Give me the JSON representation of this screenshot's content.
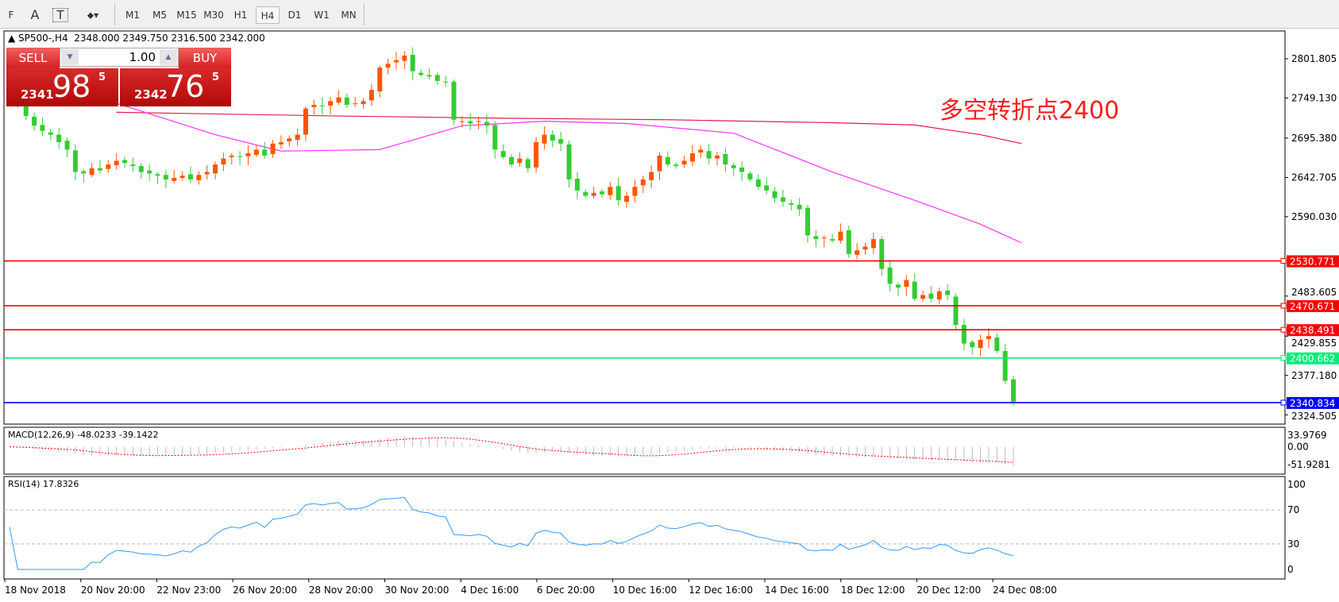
{
  "toolbar": {
    "timeframes": [
      "M1",
      "M5",
      "M15",
      "M30",
      "H1",
      "H4",
      "D1",
      "W1",
      "MN"
    ],
    "active": "H4",
    "tools": [
      "F",
      "A",
      "T"
    ]
  },
  "header": {
    "symbol": "SP500-,H4",
    "ohlc": "2348.000 2349.750 2316.500 2342.000"
  },
  "trade_panel": {
    "sell_label": "SELL",
    "buy_label": "BUY",
    "volume": "1.00",
    "sell_small": "2341",
    "sell_big": "98",
    "sell_sup": "5",
    "buy_small": "2342",
    "buy_big": "76",
    "buy_sup": "5"
  },
  "annotation": "多空转折点2400",
  "colors": {
    "bull": "#ff5500",
    "bear": "#33cc33",
    "ma_fast": "#ff33ff",
    "ma_slow": "#e0204a",
    "rsi": "#3399ff"
  },
  "chart_data": {
    "type": "candlestick",
    "price_ticks": [
      "2801.805",
      "2749.130",
      "2695.380",
      "2642.705",
      "2590.030",
      "2483.605",
      "2429.855",
      "2377.180",
      "2324.505"
    ],
    "ylim": [
      2312,
      2839
    ],
    "closes": [
      2755,
      2740,
      2725,
      2712,
      2705,
      2700,
      2690,
      2680,
      2650,
      2648,
      2655,
      2652,
      2660,
      2665,
      2662,
      2658,
      2650,
      2648,
      2645,
      2640,
      2642,
      2645,
      2640,
      2646,
      2650,
      2660,
      2668,
      2672,
      2670,
      2675,
      2680,
      2672,
      2688,
      2690,
      2695,
      2700,
      2735,
      2740,
      2738,
      2745,
      2750,
      2740,
      2742,
      2745,
      2760,
      2790,
      2795,
      2800,
      2806,
      2785,
      2780,
      2778,
      2772,
      2770,
      2720,
      2718,
      2715,
      2718,
      2712,
      2680,
      2670,
      2660,
      2668,
      2655,
      2690,
      2700,
      2692,
      2688,
      2640,
      2625,
      2618,
      2622,
      2620,
      2630,
      2612,
      2618,
      2630,
      2640,
      2650,
      2672,
      2660,
      2658,
      2665,
      2675,
      2680,
      2668,
      2672,
      2660,
      2655,
      2650,
      2640,
      2630,
      2625,
      2615,
      2610,
      2606,
      2600,
      2565,
      2560,
      2562,
      2558,
      2570,
      2540,
      2545,
      2550,
      2560,
      2520,
      2500,
      2495,
      2505,
      2480,
      2485,
      2480,
      2490,
      2485,
      2445,
      2420,
      2415,
      2425,
      2430,
      2410,
      2370,
      2342
    ],
    "ma_slow": [
      [
        13,
        2730
      ],
      [
        40,
        2725
      ],
      [
        60,
        2722
      ],
      [
        80,
        2720
      ],
      [
        100,
        2716
      ],
      [
        110,
        2713
      ],
      [
        118,
        2700
      ],
      [
        123,
        2688
      ]
    ],
    "ma_fast": [
      [
        13,
        2742
      ],
      [
        25,
        2700
      ],
      [
        33,
        2678
      ],
      [
        45,
        2680
      ],
      [
        55,
        2712
      ],
      [
        65,
        2718
      ],
      [
        75,
        2715
      ],
      [
        88,
        2702
      ],
      [
        100,
        2650
      ],
      [
        110,
        2612
      ],
      [
        118,
        2580
      ],
      [
        123,
        2555
      ]
    ],
    "hlines": [
      {
        "value": "2530.771",
        "color": "#ff0000"
      },
      {
        "value": "2470.671",
        "color": "#ff0000"
      },
      {
        "value": "2438.491",
        "color": "#ff0000"
      },
      {
        "value": "2400.662",
        "color": "#00ee77"
      },
      {
        "value": "2340.834",
        "color": "#0000ff"
      }
    ],
    "macd": {
      "label": "MACD(12,26,9) -48.0233 -39.1422",
      "ticks": [
        "33.9769",
        "0.00",
        "-51.9281"
      ]
    },
    "rsi": {
      "label": "RSI(14) 17.8326",
      "ticks": [
        "100",
        "70",
        "30",
        "0"
      ]
    },
    "time_labels": [
      "18 Nov 2018",
      "20 Nov 20:00",
      "22 Nov 23:00",
      "26 Nov 20:00",
      "28 Nov 20:00",
      "30 Nov 20:00",
      "4 Dec 16:00",
      "6 Dec 20:00",
      "10 Dec 16:00",
      "12 Dec 16:00",
      "14 Dec 16:00",
      "18 Dec 12:00",
      "20 Dec 12:00",
      "24 Dec 08:00"
    ]
  }
}
